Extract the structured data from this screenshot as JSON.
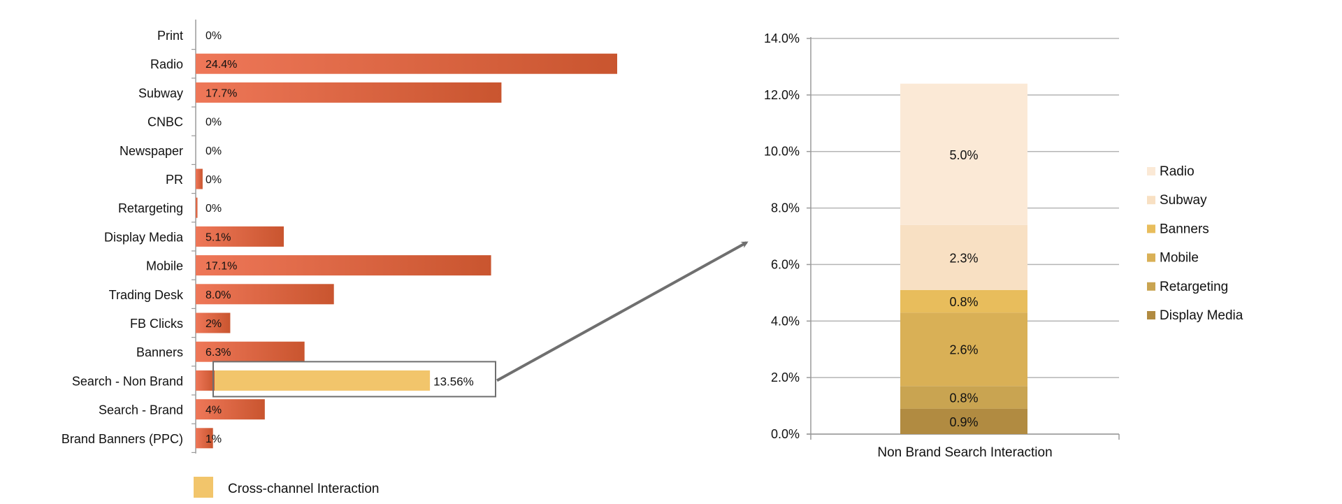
{
  "colors": {
    "bar_start": "#ee7758",
    "bar_end": "#c9552f",
    "cross_channel": "#f2c56b",
    "axis": "#9a9a9a",
    "grid": "#b5b5b5",
    "callout": "#6f6f6f",
    "stack": {
      "Radio": "#fbe9d6",
      "Subway": "#f8e0c3",
      "Banners": "#e8bd5c",
      "Mobile": "#d9b056",
      "Retargeting": "#c9a451",
      "Display Media": "#b18b41"
    }
  },
  "legend_bottom": {
    "label": "Cross-channel Interaction"
  },
  "chart_data": [
    {
      "type": "bar",
      "orientation": "horizontal",
      "categories": [
        "Print",
        "Radio",
        "Subway",
        "CNBC",
        "Newspaper",
        "PR",
        "Retargeting",
        "Display Media",
        "Mobile",
        "Trading Desk",
        "FB Clicks",
        "Banners",
        "Search - Non Brand",
        "Search - Brand",
        "Brand Banners (PPC)"
      ],
      "values": [
        0,
        24.4,
        17.7,
        0,
        0,
        0.4,
        0.1,
        5.1,
        17.1,
        8.0,
        2,
        6.3,
        13.56,
        4,
        1
      ],
      "labels": [
        "0%",
        "24.4%",
        "17.7%",
        "0%",
        "0%",
        "0%",
        "0%",
        "5.1%",
        "17.1%",
        "8.0%",
        "2%",
        "6.3%",
        "13.56%",
        "4%",
        "1%"
      ],
      "highlight": {
        "category": "Search - Non Brand",
        "series": "Cross-channel Interaction",
        "own_value": 1.1,
        "cross_value": 12.46
      },
      "xlim": [
        0,
        27
      ]
    },
    {
      "type": "bar",
      "stacked": true,
      "categories": [
        "Non Brand Search Interaction"
      ],
      "series": [
        {
          "name": "Display Media",
          "values": [
            0.9
          ],
          "label": "0.9%"
        },
        {
          "name": "Retargeting",
          "values": [
            0.8
          ],
          "label": "0.8%"
        },
        {
          "name": "Mobile",
          "values": [
            2.6
          ],
          "label": "2.6%"
        },
        {
          "name": "Banners",
          "values": [
            0.8
          ],
          "label": "0.8%"
        },
        {
          "name": "Subway",
          "values": [
            2.3
          ],
          "label": "2.3%"
        },
        {
          "name": "Radio",
          "values": [
            5.0
          ],
          "label": "5.0%"
        }
      ],
      "legend_order": [
        "Radio",
        "Subway",
        "Banners",
        "Mobile",
        "Retargeting",
        "Display Media"
      ],
      "ylim": [
        0,
        14
      ],
      "yticks": [
        "0.0%",
        "2.0%",
        "4.0%",
        "6.0%",
        "8.0%",
        "10.0%",
        "12.0%",
        "14.0%"
      ],
      "legend": "right",
      "grid": true
    }
  ]
}
